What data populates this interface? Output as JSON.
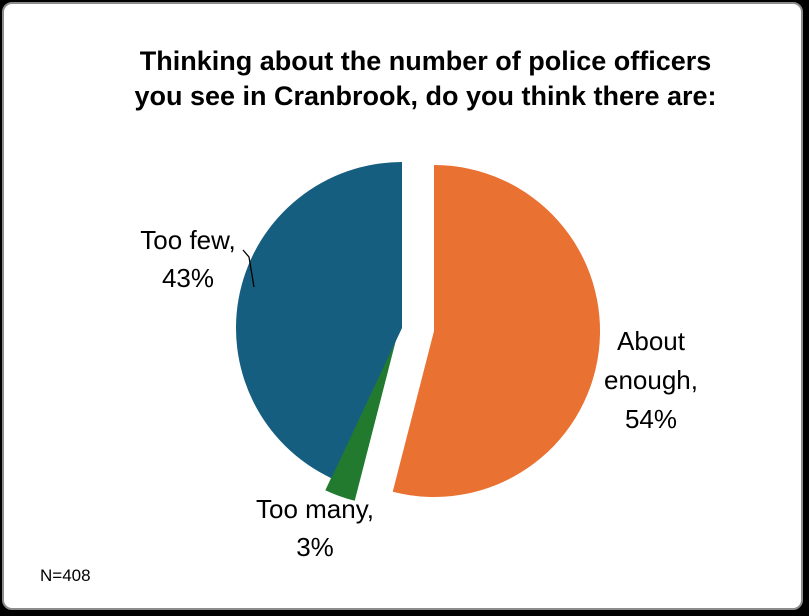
{
  "chart_data": {
    "type": "pie",
    "title": [
      "Thinking about the number of police officers",
      "you see in Cranbrook, do you think there are:"
    ],
    "slices": [
      {
        "name": "About enough",
        "value": 54,
        "label": [
          "About",
          "enough,",
          "54%"
        ],
        "color": "#E97132"
      },
      {
        "name": "Too many",
        "value": 3,
        "label": [
          "Too many,",
          "3%"
        ],
        "color": "#217A2E"
      },
      {
        "name": "Too few",
        "value": 43,
        "label": [
          "Too few,",
          "43%"
        ],
        "color": "#165E80"
      }
    ],
    "exploded": true,
    "legend": "none",
    "note": "N=408"
  }
}
